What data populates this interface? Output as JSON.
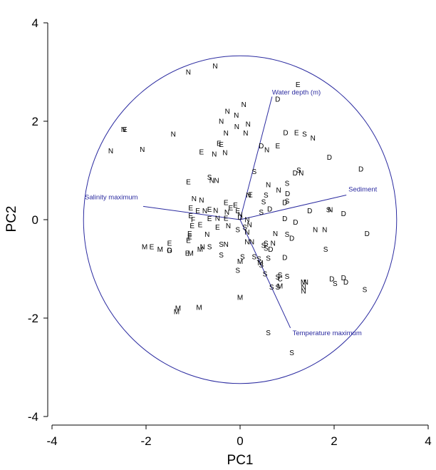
{
  "chart_data": {
    "type": "scatter",
    "xlabel": "PC1",
    "ylabel": "PC2",
    "xlim": [
      -4,
      4
    ],
    "ylim": [
      -4,
      4
    ],
    "xticks": [
      "-4",
      "-2",
      "0",
      "2",
      "4"
    ],
    "yticks": [
      "4",
      "2",
      "0",
      "-2",
      "-4"
    ],
    "colors": {
      "axes": "#000000",
      "vectors": "#2b2ba0"
    },
    "circle": {
      "center": [
        0,
        0
      ],
      "radius": 3.33
    },
    "vectors": [
      {
        "label": "Water depth (m)",
        "x": 0.68,
        "y": 2.5
      },
      {
        "label": "Sediment",
        "x": 2.26,
        "y": 0.5
      },
      {
        "label": "Salinity maximum",
        "x": -2.06,
        "y": 0.27
      },
      {
        "label": "Temperature maximum",
        "x": 1.07,
        "y": -2.2
      }
    ],
    "points": [
      {
        "x": -1.1,
        "y": 3.0,
        "label": "N"
      },
      {
        "x": -0.53,
        "y": 3.12,
        "label": "N"
      },
      {
        "x": 1.23,
        "y": 2.75,
        "label": "E"
      },
      {
        "x": 0.08,
        "y": 2.34,
        "label": "N"
      },
      {
        "x": 0.8,
        "y": 2.45,
        "label": "D"
      },
      {
        "x": -0.27,
        "y": 2.2,
        "label": "N"
      },
      {
        "x": -0.08,
        "y": 2.12,
        "label": "N"
      },
      {
        "x": -0.4,
        "y": 2.0,
        "label": "N"
      },
      {
        "x": -0.07,
        "y": 1.89,
        "label": "N"
      },
      {
        "x": 0.17,
        "y": 1.94,
        "label": "N"
      },
      {
        "x": 0.12,
        "y": 1.76,
        "label": "N"
      },
      {
        "x": -0.3,
        "y": 1.76,
        "label": "N"
      },
      {
        "x": -2.48,
        "y": 1.83,
        "label": "N"
      },
      {
        "x": -2.45,
        "y": 1.83,
        "label": "E"
      },
      {
        "x": -1.42,
        "y": 1.74,
        "label": "N"
      },
      {
        "x": 0.97,
        "y": 1.77,
        "label": "D"
      },
      {
        "x": 1.2,
        "y": 1.77,
        "label": "E"
      },
      {
        "x": 1.37,
        "y": 1.74,
        "label": "S"
      },
      {
        "x": 1.55,
        "y": 1.66,
        "label": "N"
      },
      {
        "x": -0.45,
        "y": 1.55,
        "label": "E"
      },
      {
        "x": -0.4,
        "y": 1.53,
        "label": "E"
      },
      {
        "x": 0.45,
        "y": 1.5,
        "label": "D"
      },
      {
        "x": 0.8,
        "y": 1.5,
        "label": "E"
      },
      {
        "x": 0.57,
        "y": 1.42,
        "label": "N"
      },
      {
        "x": -2.75,
        "y": 1.4,
        "label": "N"
      },
      {
        "x": -2.08,
        "y": 1.43,
        "label": "N"
      },
      {
        "x": -0.82,
        "y": 1.38,
        "label": "E"
      },
      {
        "x": -0.55,
        "y": 1.33,
        "label": "N"
      },
      {
        "x": -0.32,
        "y": 1.36,
        "label": "N"
      },
      {
        "x": 1.9,
        "y": 1.27,
        "label": "D"
      },
      {
        "x": 0.3,
        "y": 0.98,
        "label": "S"
      },
      {
        "x": 1.25,
        "y": 1.01,
        "label": "S"
      },
      {
        "x": 1.17,
        "y": 0.95,
        "label": "D"
      },
      {
        "x": 1.3,
        "y": 0.95,
        "label": "N"
      },
      {
        "x": 2.57,
        "y": 1.03,
        "label": "D"
      },
      {
        "x": -0.65,
        "y": 0.86,
        "label": "S"
      },
      {
        "x": -0.6,
        "y": 0.8,
        "label": "N"
      },
      {
        "x": -0.5,
        "y": 0.8,
        "label": "N"
      },
      {
        "x": -1.1,
        "y": 0.77,
        "label": "E"
      },
      {
        "x": 0.6,
        "y": 0.71,
        "label": "N"
      },
      {
        "x": 1.0,
        "y": 0.74,
        "label": "S"
      },
      {
        "x": 0.82,
        "y": 0.6,
        "label": "N"
      },
      {
        "x": 0.22,
        "y": 0.51,
        "label": "E"
      },
      {
        "x": 0.18,
        "y": 0.5,
        "label": "N"
      },
      {
        "x": 0.55,
        "y": 0.5,
        "label": "S"
      },
      {
        "x": 1.01,
        "y": 0.53,
        "label": "D"
      },
      {
        "x": -0.98,
        "y": 0.43,
        "label": "N"
      },
      {
        "x": -0.82,
        "y": 0.4,
        "label": "N"
      },
      {
        "x": 0.5,
        "y": 0.36,
        "label": "S"
      },
      {
        "x": 0.95,
        "y": 0.35,
        "label": "D"
      },
      {
        "x": 1.0,
        "y": 0.38,
        "label": "S"
      },
      {
        "x": -0.3,
        "y": 0.35,
        "label": "E"
      },
      {
        "x": -0.1,
        "y": 0.3,
        "label": "E"
      },
      {
        "x": -0.2,
        "y": 0.24,
        "label": "E"
      },
      {
        "x": -1.05,
        "y": 0.24,
        "label": "E"
      },
      {
        "x": -0.9,
        "y": 0.18,
        "label": "E"
      },
      {
        "x": -0.75,
        "y": 0.18,
        "label": "N"
      },
      {
        "x": -0.65,
        "y": 0.21,
        "label": "E"
      },
      {
        "x": -0.52,
        "y": 0.19,
        "label": "N"
      },
      {
        "x": -0.28,
        "y": 0.15,
        "label": "N"
      },
      {
        "x": -0.05,
        "y": 0.18,
        "label": "E"
      },
      {
        "x": 0.0,
        "y": 0.1,
        "label": "N"
      },
      {
        "x": 0.45,
        "y": 0.15,
        "label": "S"
      },
      {
        "x": 0.63,
        "y": 0.22,
        "label": "D"
      },
      {
        "x": 1.48,
        "y": 0.18,
        "label": "D"
      },
      {
        "x": 1.88,
        "y": 0.2,
        "label": "S"
      },
      {
        "x": 1.92,
        "y": 0.2,
        "label": "N"
      },
      {
        "x": 2.2,
        "y": 0.12,
        "label": "D"
      },
      {
        "x": -1.05,
        "y": 0.08,
        "label": "E"
      },
      {
        "x": -1.0,
        "y": 0.0,
        "label": "F"
      },
      {
        "x": -0.65,
        "y": 0.02,
        "label": "E"
      },
      {
        "x": -0.48,
        "y": 0.03,
        "label": "N"
      },
      {
        "x": -0.3,
        "y": 0.03,
        "label": "E"
      },
      {
        "x": 0.0,
        "y": 0.05,
        "label": "D"
      },
      {
        "x": 0.15,
        "y": 0.0,
        "label": "N"
      },
      {
        "x": 0.95,
        "y": 0.02,
        "label": "D"
      },
      {
        "x": 1.18,
        "y": -0.05,
        "label": "D"
      },
      {
        "x": -1.02,
        "y": -0.12,
        "label": "E"
      },
      {
        "x": -0.85,
        "y": -0.1,
        "label": "E"
      },
      {
        "x": -0.48,
        "y": -0.15,
        "label": "E"
      },
      {
        "x": -0.25,
        "y": -0.12,
        "label": "N"
      },
      {
        "x": -0.05,
        "y": -0.2,
        "label": "S"
      },
      {
        "x": 0.1,
        "y": -0.15,
        "label": "S"
      },
      {
        "x": 0.2,
        "y": -0.1,
        "label": "N"
      },
      {
        "x": 0.15,
        "y": -0.25,
        "label": "N"
      },
      {
        "x": 1.6,
        "y": -0.2,
        "label": "N"
      },
      {
        "x": 1.8,
        "y": -0.2,
        "label": "N"
      },
      {
        "x": 2.7,
        "y": -0.28,
        "label": "D"
      },
      {
        "x": -1.07,
        "y": -0.28,
        "label": "E"
      },
      {
        "x": -0.7,
        "y": -0.3,
        "label": "N"
      },
      {
        "x": -1.07,
        "y": -0.35,
        "label": "E"
      },
      {
        "x": 1.0,
        "y": -0.3,
        "label": "S"
      },
      {
        "x": 0.75,
        "y": -0.28,
        "label": "N"
      },
      {
        "x": 1.1,
        "y": -0.38,
        "label": "D"
      },
      {
        "x": -1.1,
        "y": -0.42,
        "label": "E"
      },
      {
        "x": -1.5,
        "y": -0.48,
        "label": "E"
      },
      {
        "x": 0.15,
        "y": -0.45,
        "label": "N"
      },
      {
        "x": 0.25,
        "y": -0.45,
        "label": "N"
      },
      {
        "x": 0.55,
        "y": -0.48,
        "label": "S"
      },
      {
        "x": 0.5,
        "y": -0.52,
        "label": "S"
      },
      {
        "x": 0.7,
        "y": -0.48,
        "label": "N"
      },
      {
        "x": -0.3,
        "y": -0.5,
        "label": "N"
      },
      {
        "x": -0.8,
        "y": -0.55,
        "label": "N"
      },
      {
        "x": -0.4,
        "y": -0.5,
        "label": "S"
      },
      {
        "x": -2.03,
        "y": -0.55,
        "label": "M"
      },
      {
        "x": -1.88,
        "y": -0.55,
        "label": "E"
      },
      {
        "x": -1.7,
        "y": -0.6,
        "label": "M"
      },
      {
        "x": -1.5,
        "y": -0.62,
        "label": "G"
      },
      {
        "x": -1.5,
        "y": -0.62,
        "label": "D"
      },
      {
        "x": -0.85,
        "y": -0.6,
        "label": "M"
      },
      {
        "x": -0.65,
        "y": -0.55,
        "label": "S"
      },
      {
        "x": 0.55,
        "y": -0.58,
        "label": "S"
      },
      {
        "x": 0.65,
        "y": -0.6,
        "label": "D"
      },
      {
        "x": 1.82,
        "y": -0.6,
        "label": "S"
      },
      {
        "x": -1.05,
        "y": -0.68,
        "label": "M"
      },
      {
        "x": -1.12,
        "y": -0.68,
        "label": "E"
      },
      {
        "x": -0.4,
        "y": -0.72,
        "label": "S"
      },
      {
        "x": 0.3,
        "y": -0.75,
        "label": "S"
      },
      {
        "x": 0.0,
        "y": -0.85,
        "label": "M"
      },
      {
        "x": 0.05,
        "y": -0.75,
        "label": "S"
      },
      {
        "x": 0.4,
        "y": -0.8,
        "label": "S"
      },
      {
        "x": 0.6,
        "y": -0.78,
        "label": "S"
      },
      {
        "x": 0.95,
        "y": -0.77,
        "label": "D"
      },
      {
        "x": 0.43,
        "y": -0.88,
        "label": "M"
      },
      {
        "x": 0.45,
        "y": -0.92,
        "label": "S"
      },
      {
        "x": -0.05,
        "y": -1.03,
        "label": "S"
      },
      {
        "x": 0.53,
        "y": -1.1,
        "label": "S"
      },
      {
        "x": 0.85,
        "y": -1.12,
        "label": "S"
      },
      {
        "x": 0.8,
        "y": -1.17,
        "label": "S"
      },
      {
        "x": 0.85,
        "y": -1.2,
        "label": "C"
      },
      {
        "x": 1.0,
        "y": -1.15,
        "label": "S"
      },
      {
        "x": 0.85,
        "y": -1.35,
        "label": "M"
      },
      {
        "x": 0.67,
        "y": -1.37,
        "label": "S"
      },
      {
        "x": 0.8,
        "y": -1.37,
        "label": "S"
      },
      {
        "x": 1.35,
        "y": -1.27,
        "label": "M"
      },
      {
        "x": 1.4,
        "y": -1.27,
        "label": "N"
      },
      {
        "x": 1.35,
        "y": -1.37,
        "label": "N"
      },
      {
        "x": 1.35,
        "y": -1.45,
        "label": "N"
      },
      {
        "x": 1.95,
        "y": -1.2,
        "label": "D"
      },
      {
        "x": 2.02,
        "y": -1.3,
        "label": "S"
      },
      {
        "x": 2.2,
        "y": -1.18,
        "label": "D"
      },
      {
        "x": 2.25,
        "y": -1.27,
        "label": "D"
      },
      {
        "x": 2.65,
        "y": -1.42,
        "label": "S"
      },
      {
        "x": 0.0,
        "y": -1.58,
        "label": "M"
      },
      {
        "x": -1.32,
        "y": -1.8,
        "label": "M"
      },
      {
        "x": -1.35,
        "y": -1.87,
        "label": "M"
      },
      {
        "x": -0.87,
        "y": -1.78,
        "label": "M"
      },
      {
        "x": 0.6,
        "y": -2.3,
        "label": "S"
      },
      {
        "x": 1.1,
        "y": -2.7,
        "label": "S"
      }
    ]
  }
}
